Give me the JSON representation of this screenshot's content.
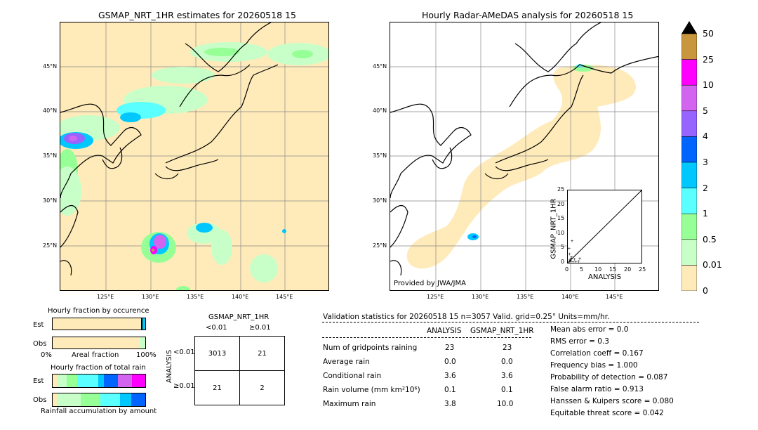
{
  "left_title": "GSMAP_NRT_1HR estimates for 20260518 15",
  "right_title": "Hourly Radar-AMeDAS analysis for 20260518 15",
  "lat_labels": [
    "45°N",
    "40°N",
    "35°N",
    "30°N",
    "25°N"
  ],
  "lon_labels": [
    "125°E",
    "130°E",
    "135°E",
    "140°E",
    "145°E"
  ],
  "provided_by": "Provided by JWA/JMA",
  "colorbar": {
    "labels": [
      "50",
      "25",
      "10",
      "5",
      "4",
      "3",
      "2",
      "1",
      "0.5",
      "0.01",
      "0"
    ],
    "colors": [
      "#c8963c",
      "#ff00ff",
      "#d264f0",
      "#9664ff",
      "#0064ff",
      "#00c8ff",
      "#5affff",
      "#96ff96",
      "#c8ffc8",
      "#ffebb9"
    ]
  },
  "fraction_occurrence": {
    "title": "Hourly fraction by occurence",
    "rows": [
      "Est",
      "Obs"
    ],
    "axis_left": "0%",
    "axis_mid": "Areal fraction",
    "axis_right": "100%"
  },
  "fraction_total": {
    "title": "Hourly fraction of total rain",
    "rows": [
      "Est",
      "Obs"
    ],
    "footer": "Rainfall accumulation by amount"
  },
  "contingency": {
    "title": "GSMAP_NRT_1HR",
    "col_lt": "<0.01",
    "col_ge": "≥0.01",
    "row_axis": "ANALYSIS",
    "row_lt": "<0.01",
    "row_ge": "≥0.01",
    "cells": [
      "3013",
      "21",
      "21",
      "2"
    ]
  },
  "validation": {
    "header": "Validation statistics for 20260518 15  n=3057 Valid. grid=0.25° Units=mm/hr.",
    "col_analysis": "ANALYSIS",
    "col_gsmap": "GSMAP_NRT_1HR",
    "rows": [
      {
        "label": "Num of gridpoints raining",
        "a": "23",
        "g": "23"
      },
      {
        "label": "Average rain",
        "a": "0.0",
        "g": "0.0"
      },
      {
        "label": "Conditional rain",
        "a": "3.6",
        "g": "3.6"
      },
      {
        "label": "Rain volume (mm km²10⁶)",
        "a": "0.1",
        "g": "0.1"
      },
      {
        "label": "Maximum rain",
        "a": "3.8",
        "g": "10.0"
      }
    ],
    "scores": [
      "Mean abs error =    0.0",
      "RMS error =    0.3",
      "Correlation coeff =  0.167",
      "Frequency bias =  1.000",
      "Probability of detection =  0.087",
      "False alarm ratio =  0.913",
      "Hanssen & Kuipers score =  0.080",
      "Equitable threat score =  0.042"
    ]
  },
  "chart_data": {
    "type": "scatter",
    "xlabel": "ANALYSIS",
    "ylabel": "GSMAP_NRT_1HR",
    "xlim": [
      0,
      25
    ],
    "ylim": [
      0,
      25
    ],
    "ticks": [
      "0",
      "5",
      "10",
      "15",
      "20",
      "25"
    ],
    "points": [
      [
        0.3,
        0.2
      ],
      [
        0.5,
        1.0
      ],
      [
        0.8,
        0.5
      ],
      [
        1.0,
        2.0
      ],
      [
        0.4,
        3.0
      ],
      [
        1.5,
        0.3
      ],
      [
        2.0,
        1.2
      ],
      [
        0.2,
        5.0
      ],
      [
        3.5,
        0.5
      ],
      [
        3.8,
        1.5
      ],
      [
        1.2,
        7.5
      ],
      [
        0.6,
        0.8
      ],
      [
        2.5,
        0.4
      ],
      [
        0.9,
        1.6
      ]
    ]
  }
}
